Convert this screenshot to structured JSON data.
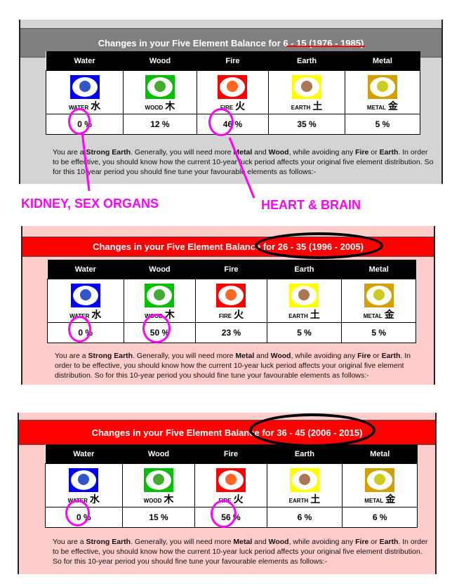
{
  "elements": [
    {
      "name": "Water",
      "label": "WATER",
      "hanzi": "水",
      "color": "#0000ff",
      "icon_color": "#3355cc",
      "icon": "water-drops-icon"
    },
    {
      "name": "Wood",
      "label": "WOOD",
      "hanzi": "木",
      "color": "#00c000",
      "icon_color": "#44aa33",
      "icon": "tree-icon"
    },
    {
      "name": "Fire",
      "label": "FIRE",
      "hanzi": "火",
      "color": "#ff0000",
      "icon_color": "#ff6622",
      "icon": "flame-icon"
    },
    {
      "name": "Earth",
      "label": "EARTH",
      "hanzi": "土",
      "color": "#ffff00",
      "icon_color": "#aa7755",
      "icon": "earth-rocks-icon"
    },
    {
      "name": "Metal",
      "label": "METAL",
      "hanzi": "金",
      "color": "#d4a000",
      "icon_color": "#cccc22",
      "icon": "metal-nuggets-icon"
    }
  ],
  "text": {
    "p1": "You are a ",
    "b1": "Strong Earth",
    "p2": ". Generally, you will need more ",
    "b2": "Metal",
    "p3": " and ",
    "b3": "Wood",
    "p4": ", while avoiding any ",
    "b4": "Fire",
    "p5": " or ",
    "b5": "Earth",
    "p6": ". In order to be effective, you should know how the current 10-year luck period affects your original five element distribution. So for this 10-year period you should fine tune your favourable elements as follows:-"
  },
  "panels": [
    {
      "title_prefix": "Changes in your Five Element Balance for ",
      "title_period": "6 - 15 (1976 - 1985)",
      "title_bg": "#808080",
      "panel_bg": "#d4d4d4",
      "values": [
        "0 %",
        "12 %",
        "46 %",
        "35 %",
        "5 %"
      ]
    },
    {
      "title_prefix": "Changes in your Five Element Balance for ",
      "title_period": "26 - 35 (1996 - 2005)",
      "title_bg": "#ff0000",
      "panel_bg": "#ffcccc",
      "values": [
        "0 %",
        "50 %",
        "23 %",
        "5 %",
        "5 %"
      ]
    },
    {
      "title_prefix": "Changes in your Five Element Balance for ",
      "title_period": "36 - 45 (2006 - 2015)",
      "title_bg": "#ff0000",
      "panel_bg": "#ffcccc",
      "values": [
        "0 %",
        "15 %",
        "56 %",
        "6 %",
        "6 %"
      ]
    }
  ],
  "annotations": {
    "kidney": "KIDNEY, SEX ORGANS",
    "heart": "HEART & BRAIN",
    "color": "#ff00ff"
  }
}
